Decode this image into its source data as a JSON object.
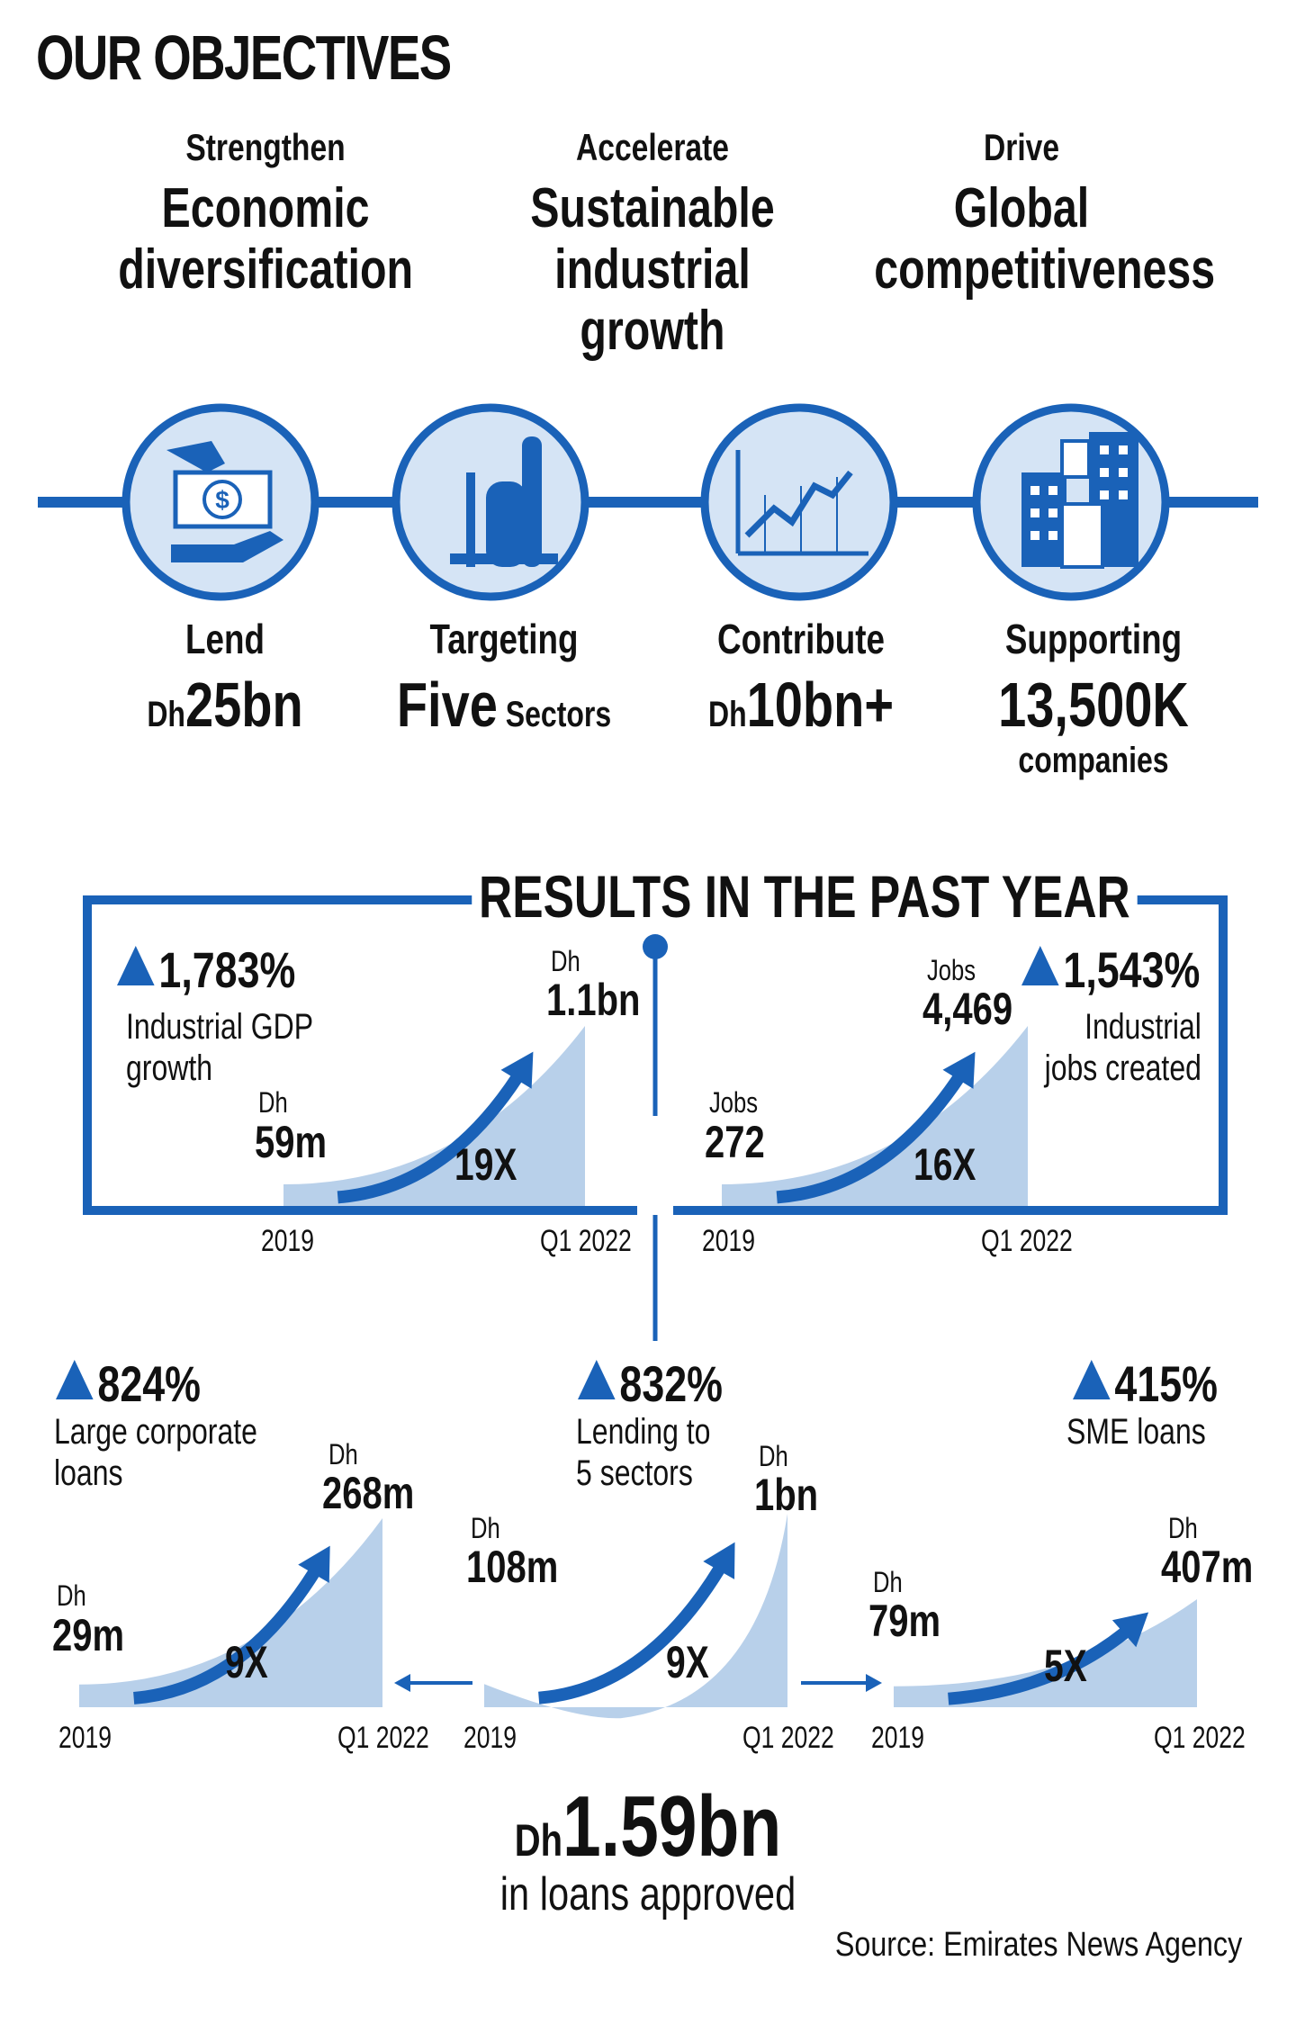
{
  "page_title": "OUR OBJECTIVES",
  "objectives": [
    {
      "verb": "Strengthen",
      "goal_lines": [
        "Economic",
        "diversification"
      ]
    },
    {
      "verb": "Accelerate",
      "goal_lines": [
        "Sustainable",
        "industrial",
        "growth"
      ]
    },
    {
      "verb": "Drive",
      "goal_lines": [
        "Global",
        "competitiveness"
      ]
    }
  ],
  "icons": [
    "money-hands-icon",
    "factory-tanks-icon",
    "growth-chart-icon",
    "office-buildings-icon"
  ],
  "targets": [
    {
      "label": "Lend",
      "prefix": "Dh",
      "value": "25bn",
      "suffix": ""
    },
    {
      "label": "Targeting",
      "prefix": "",
      "value": "Five",
      "suffix": " Sectors"
    },
    {
      "label": "Contribute",
      "prefix": "Dh",
      "value": "10bn+",
      "suffix": ""
    },
    {
      "label": "Supporting",
      "prefix": "",
      "value": "13,500K",
      "suffix": "companies"
    }
  ],
  "results_title": "RESULTS IN THE PAST YEAR",
  "colors": {
    "accent": "#1a62b8",
    "fill": "#b8d0ea",
    "text": "#111111"
  },
  "chart_data": [
    {
      "type": "area",
      "id": "gdp",
      "percent": "1,783%",
      "desc_lines": [
        "Industrial GDP",
        "growth"
      ],
      "x": [
        "2019",
        "Q1 2022"
      ],
      "start_unit": "Dh",
      "start_label": "59m",
      "end_unit": "Dh",
      "end_label": "1.1bn",
      "values": [
        0.059,
        1.1
      ],
      "multiplier": "19X"
    },
    {
      "type": "area",
      "id": "jobs",
      "percent": "1,543%",
      "desc_lines": [
        "Industrial",
        "jobs created"
      ],
      "x": [
        "2019",
        "Q1 2022"
      ],
      "start_unit": "Jobs",
      "start_label": "272",
      "end_unit": "Jobs",
      "end_label": "4,469",
      "values": [
        272,
        4469
      ],
      "multiplier": "16X"
    },
    {
      "type": "area",
      "id": "corporate",
      "percent": "824%",
      "desc_lines": [
        "Large corporate",
        "loans"
      ],
      "x": [
        "2019",
        "Q1 2022"
      ],
      "start_unit": "Dh",
      "start_label": "29m",
      "end_unit": "Dh",
      "end_label": "268m",
      "values": [
        29,
        268
      ],
      "multiplier": "9X"
    },
    {
      "type": "area",
      "id": "lending",
      "percent": "832%",
      "desc_lines": [
        "Lending to",
        "5 sectors"
      ],
      "x": [
        "2019",
        "Q1 2022"
      ],
      "start_unit": "Dh",
      "start_label": "108m",
      "end_unit": "Dh",
      "end_label": "1bn",
      "values": [
        108,
        1000
      ],
      "multiplier": "9X"
    },
    {
      "type": "area",
      "id": "sme",
      "percent": "415%",
      "desc_lines": [
        "SME loans"
      ],
      "x": [
        "2019",
        "Q1 2022"
      ],
      "start_unit": "Dh",
      "start_label": "79m",
      "end_unit": "Dh",
      "end_label": "407m",
      "values": [
        79,
        407
      ],
      "multiplier": "5X"
    }
  ],
  "total": {
    "prefix": "Dh",
    "value": "1.59bn",
    "subtitle": "in loans approved"
  },
  "source": "Source: Emirates News Agency"
}
